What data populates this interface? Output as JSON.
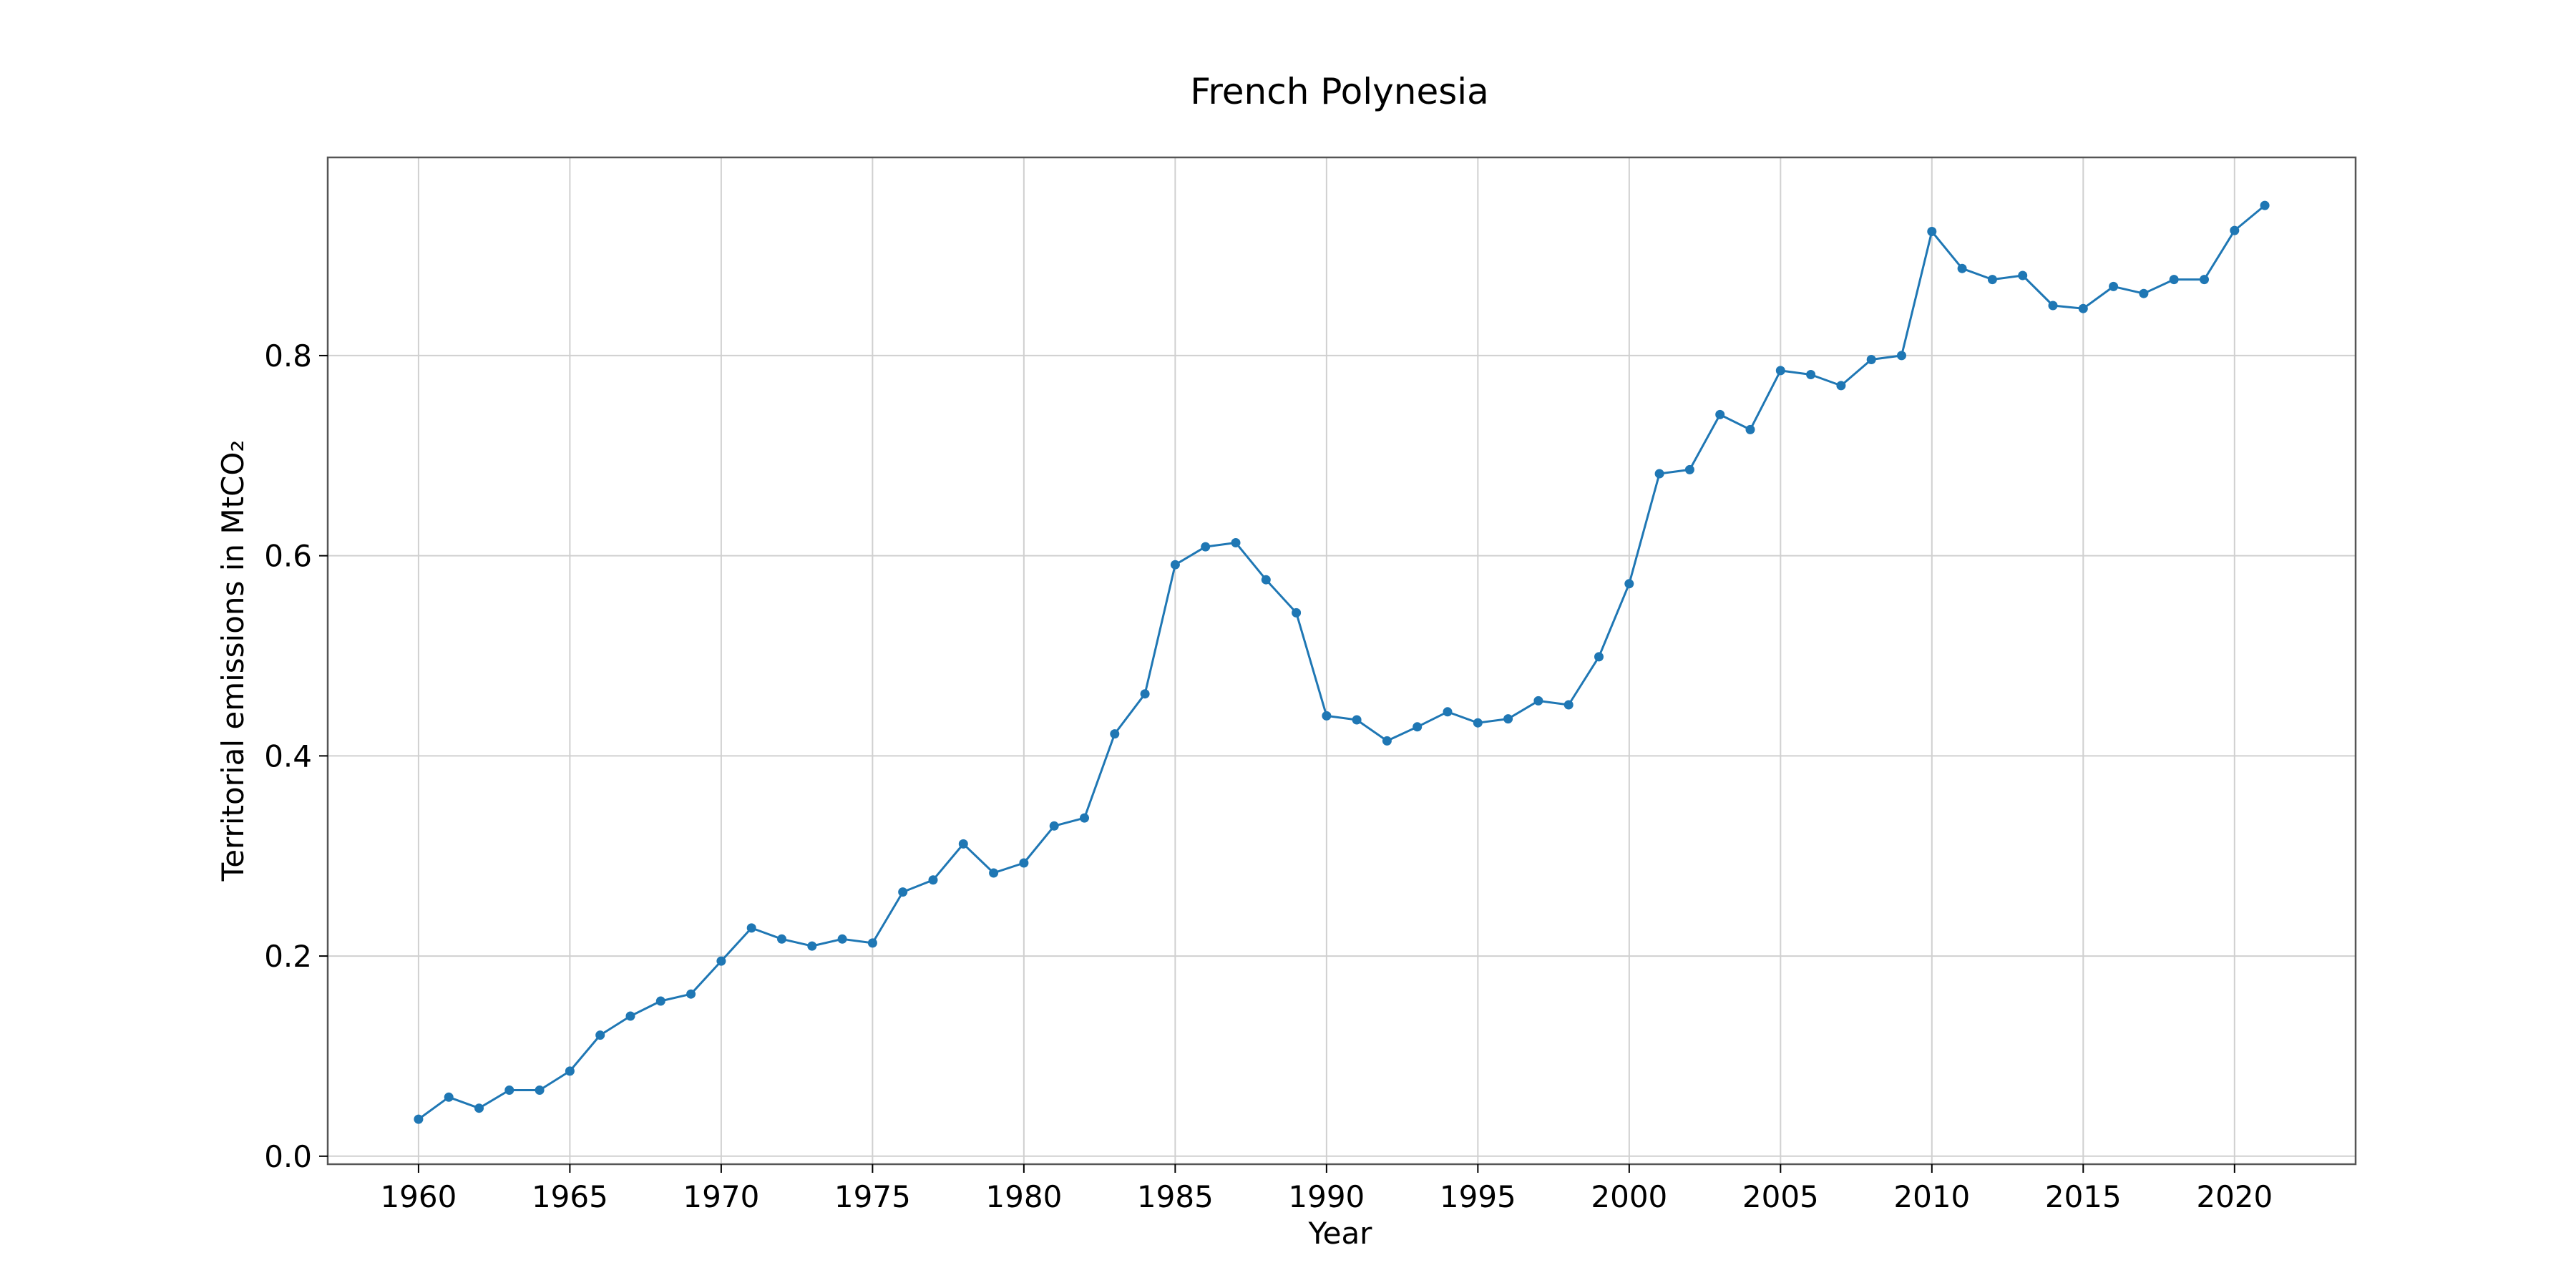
{
  "chart_data": {
    "type": "line",
    "title": "French Polynesia",
    "xlabel": "Year",
    "ylabel": "Territorial emissions in MtCO₂",
    "x_ticks": [
      1960,
      1965,
      1970,
      1975,
      1980,
      1985,
      1990,
      1995,
      2000,
      2005,
      2010,
      2015,
      2020
    ],
    "y_ticks": [
      0.0,
      0.2,
      0.4,
      0.6,
      0.8
    ],
    "y_tick_labels": [
      "0.0",
      "0.2",
      "0.4",
      "0.6",
      "0.8"
    ],
    "xlim": [
      1957,
      2024
    ],
    "ylim": [
      -0.008,
      0.998
    ],
    "grid": true,
    "series": [
      {
        "color": "#1f77b4",
        "marker": "circle",
        "x": [
          1960,
          1961,
          1962,
          1963,
          1964,
          1965,
          1966,
          1967,
          1968,
          1969,
          1970,
          1971,
          1972,
          1973,
          1974,
          1975,
          1976,
          1977,
          1978,
          1979,
          1980,
          1981,
          1982,
          1983,
          1984,
          1985,
          1986,
          1987,
          1988,
          1989,
          1990,
          1991,
          1992,
          1993,
          1994,
          1995,
          1996,
          1997,
          1998,
          1999,
          2000,
          2001,
          2002,
          2003,
          2004,
          2005,
          2006,
          2007,
          2008,
          2009,
          2010,
          2011,
          2012,
          2013,
          2014,
          2015,
          2016,
          2017,
          2018,
          2019,
          2020,
          2021
        ],
        "y": [
          0.037,
          0.059,
          0.048,
          0.066,
          0.066,
          0.085,
          0.121,
          0.14,
          0.155,
          0.162,
          0.195,
          0.228,
          0.217,
          0.21,
          0.217,
          0.213,
          0.264,
          0.276,
          0.312,
          0.283,
          0.293,
          0.33,
          0.338,
          0.422,
          0.462,
          0.591,
          0.609,
          0.613,
          0.576,
          0.543,
          0.44,
          0.436,
          0.415,
          0.429,
          0.444,
          0.433,
          0.437,
          0.455,
          0.451,
          0.499,
          0.572,
          0.682,
          0.686,
          0.741,
          0.726,
          0.785,
          0.781,
          0.77,
          0.796,
          0.8,
          0.924,
          0.887,
          0.876,
          0.88,
          0.85,
          0.847,
          0.869,
          0.862,
          0.876,
          0.876,
          0.925,
          0.95
        ]
      }
    ]
  }
}
